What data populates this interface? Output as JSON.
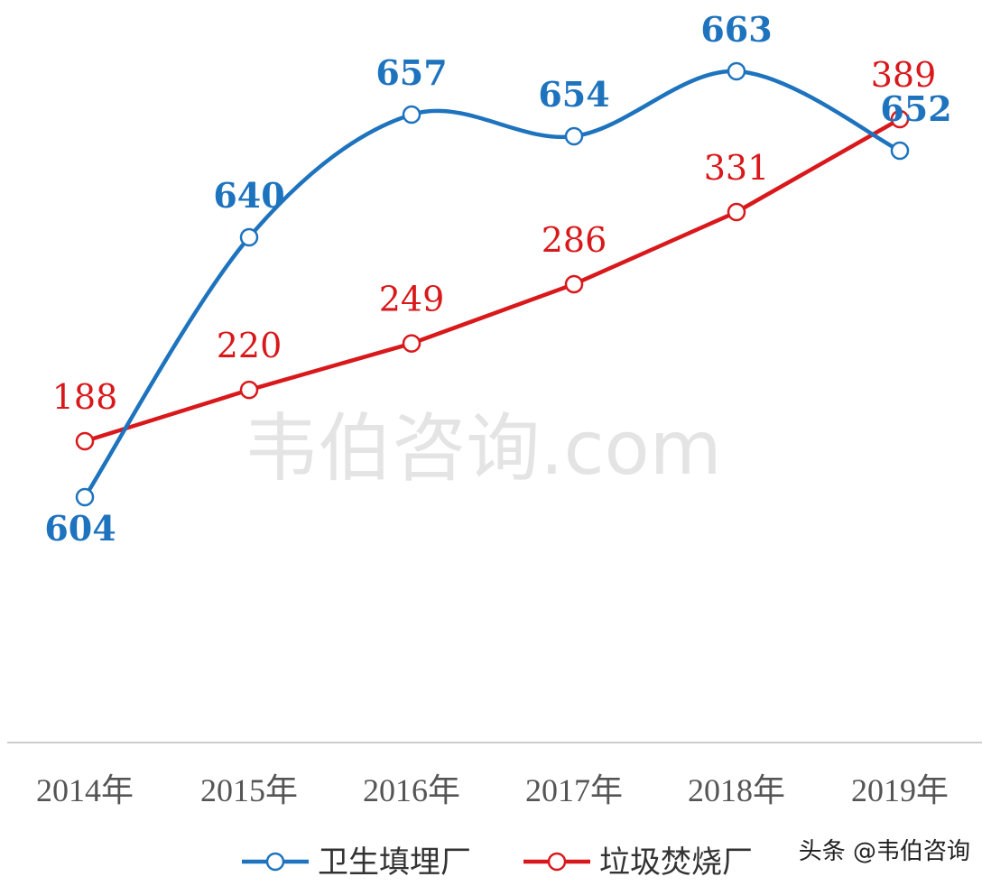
{
  "chart_data": {
    "type": "line",
    "categories": [
      "2014年",
      "2015年",
      "2016年",
      "2017年",
      "2018年",
      "2019年"
    ],
    "series": [
      {
        "name": "卫生填埋厂",
        "color": "#1E73BE",
        "smooth": true,
        "values": [
          604,
          640,
          657,
          654,
          663,
          652
        ],
        "labels": [
          "604",
          "640",
          "657",
          "654",
          "663",
          "652"
        ]
      },
      {
        "name": "垃圾焚烧厂",
        "color": "#D9181B",
        "smooth": false,
        "values": [
          188,
          220,
          249,
          286,
          331,
          389
        ],
        "labels": [
          "188",
          "220",
          "249",
          "286",
          "331",
          "389"
        ]
      }
    ],
    "title": "",
    "xlabel": "",
    "ylabel": "",
    "grid": false,
    "legend": "bottom",
    "data_labels": true
  },
  "watermark": "韦伯咨询.com",
  "credit": "头条 @韦伯咨询"
}
